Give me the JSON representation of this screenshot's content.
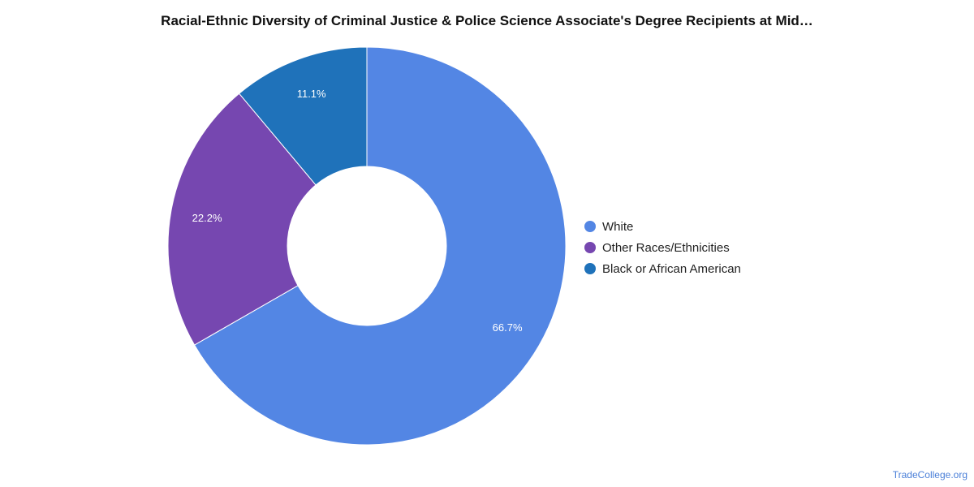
{
  "chart_data": {
    "type": "pie",
    "title": "Racial-Ethnic Diversity of Criminal Justice & Police Science Associate's Degree Recipients at Mid…",
    "donut": true,
    "series": [
      {
        "name": "White",
        "value": 66.7,
        "label": "66.7%",
        "color": "#5386e4"
      },
      {
        "name": "Other Races/Ethnicities",
        "value": 22.2,
        "label": "22.2%",
        "color": "#7647b0"
      },
      {
        "name": "Black or African American",
        "value": 11.1,
        "label": "11.1%",
        "color": "#1f72ba"
      }
    ],
    "legend_position": "right"
  },
  "watermark": "TradeCollege.org"
}
